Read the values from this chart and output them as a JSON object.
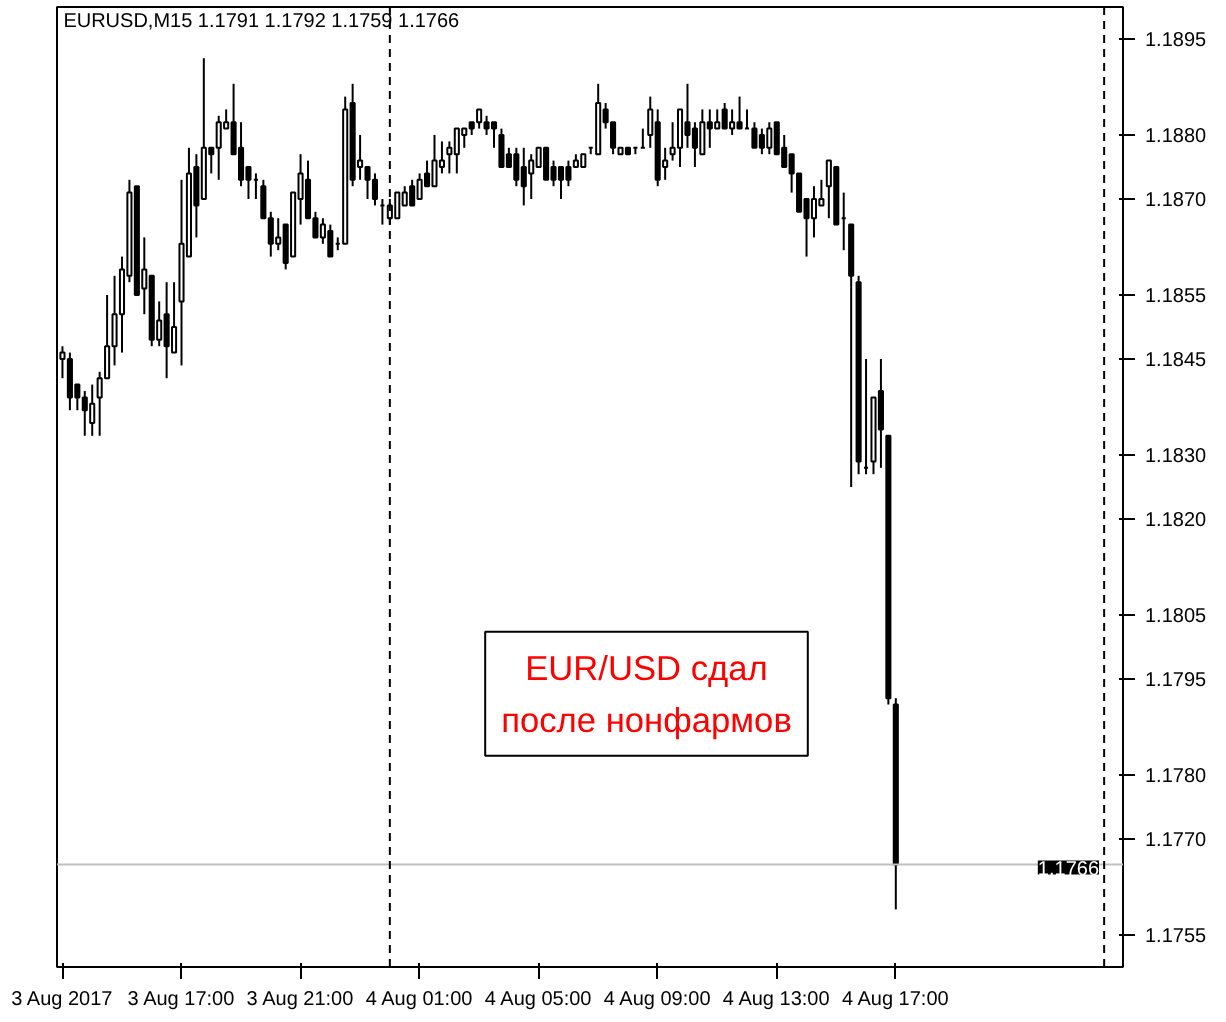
{
  "chart_data": {
    "type": "candlestick",
    "title": "EURUSD,M15  1.1791 1.1792 1.1759 1.1766",
    "annotations": [
      "EUR/USD сдал\nпосле нонфармов"
    ],
    "x": [
      "2017-08-03T13:00",
      "2017-08-03T13:15",
      "2017-08-03T13:30",
      "2017-08-03T13:45",
      "2017-08-03T14:00",
      "2017-08-03T14:15",
      "2017-08-03T14:30",
      "2017-08-03T14:45",
      "2017-08-03T15:00",
      "2017-08-03T15:15",
      "2017-08-03T15:30",
      "2017-08-03T15:45",
      "2017-08-03T16:00",
      "2017-08-03T16:15",
      "2017-08-03T16:30",
      "2017-08-03T16:45",
      "2017-08-03T17:00",
      "2017-08-03T17:15",
      "2017-08-03T17:30",
      "2017-08-03T17:45",
      "2017-08-03T18:00",
      "2017-08-03T18:15",
      "2017-08-03T18:30",
      "2017-08-03T18:45",
      "2017-08-03T19:00",
      "2017-08-03T19:15",
      "2017-08-03T19:30",
      "2017-08-03T19:45",
      "2017-08-03T20:00",
      "2017-08-03T20:15",
      "2017-08-03T20:30",
      "2017-08-03T20:45",
      "2017-08-03T21:00",
      "2017-08-03T21:15",
      "2017-08-03T21:30",
      "2017-08-03T21:45",
      "2017-08-03T22:00",
      "2017-08-03T22:15",
      "2017-08-03T22:30",
      "2017-08-03T22:45",
      "2017-08-03T23:00",
      "2017-08-03T23:15",
      "2017-08-03T23:30",
      "2017-08-03T23:45",
      "2017-08-04T00:00",
      "2017-08-04T00:15",
      "2017-08-04T00:30",
      "2017-08-04T00:45",
      "2017-08-04T01:00",
      "2017-08-04T01:15",
      "2017-08-04T01:30",
      "2017-08-04T01:45",
      "2017-08-04T02:00",
      "2017-08-04T02:15",
      "2017-08-04T02:30",
      "2017-08-04T02:45",
      "2017-08-04T03:00",
      "2017-08-04T03:15",
      "2017-08-04T03:30",
      "2017-08-04T03:45",
      "2017-08-04T04:00",
      "2017-08-04T04:15",
      "2017-08-04T04:30",
      "2017-08-04T04:45",
      "2017-08-04T05:00",
      "2017-08-04T05:15",
      "2017-08-04T05:30",
      "2017-08-04T05:45",
      "2017-08-04T06:00",
      "2017-08-04T06:15",
      "2017-08-04T06:30",
      "2017-08-04T06:45",
      "2017-08-04T07:00",
      "2017-08-04T07:15",
      "2017-08-04T07:30",
      "2017-08-04T07:45",
      "2017-08-04T08:00",
      "2017-08-04T08:15",
      "2017-08-04T08:30",
      "2017-08-04T08:45",
      "2017-08-04T09:00",
      "2017-08-04T09:15",
      "2017-08-04T09:30",
      "2017-08-04T09:45",
      "2017-08-04T10:00",
      "2017-08-04T10:15",
      "2017-08-04T10:30",
      "2017-08-04T10:45",
      "2017-08-04T11:00",
      "2017-08-04T11:15",
      "2017-08-04T11:30",
      "2017-08-04T11:45",
      "2017-08-04T12:00",
      "2017-08-04T12:15",
      "2017-08-04T12:30",
      "2017-08-04T12:45",
      "2017-08-04T13:00",
      "2017-08-04T13:15",
      "2017-08-04T13:30",
      "2017-08-04T13:45",
      "2017-08-04T14:00",
      "2017-08-04T14:15",
      "2017-08-04T14:30",
      "2017-08-04T14:45",
      "2017-08-04T15:00",
      "2017-08-04T15:15",
      "2017-08-04T15:30",
      "2017-08-04T15:45",
      "2017-08-04T16:00",
      "2017-08-04T16:15",
      "2017-08-04T16:30",
      "2017-08-04T16:45",
      "2017-08-04T17:00"
    ],
    "ohlc": [
      [
        1.1845,
        1.1847,
        1.1842,
        1.1846
      ],
      [
        1.1845,
        1.1846,
        1.1837,
        1.1839
      ],
      [
        1.1841,
        1.1841,
        1.1837,
        1.1839
      ],
      [
        1.1839,
        1.184,
        1.1833,
        1.1837
      ],
      [
        1.1835,
        1.1841,
        1.1833,
        1.1838
      ],
      [
        1.1839,
        1.1843,
        1.1833,
        1.1842
      ],
      [
        1.1842,
        1.1855,
        1.1842,
        1.1847
      ],
      [
        1.1847,
        1.1858,
        1.1844,
        1.1852
      ],
      [
        1.1852,
        1.1861,
        1.1846,
        1.1859
      ],
      [
        1.1858,
        1.1873,
        1.1857,
        1.1871
      ],
      [
        1.1872,
        1.1872,
        1.1855,
        1.1855
      ],
      [
        1.1856,
        1.1864,
        1.1852,
        1.1859
      ],
      [
        1.1858,
        1.1858,
        1.1847,
        1.1848
      ],
      [
        1.1848,
        1.1854,
        1.1847,
        1.1851
      ],
      [
        1.1852,
        1.1857,
        1.1842,
        1.1847
      ],
      [
        1.1846,
        1.1857,
        1.1846,
        1.185
      ],
      [
        1.1854,
        1.1873,
        1.1844,
        1.1863
      ],
      [
        1.1861,
        1.1878,
        1.1861,
        1.1874
      ],
      [
        1.1875,
        1.1877,
        1.1864,
        1.1869
      ],
      [
        1.187,
        1.1892,
        1.187,
        1.1878
      ],
      [
        1.1878,
        1.1878,
        1.1874,
        1.1877
      ],
      [
        1.1878,
        1.1883,
        1.1873,
        1.1882
      ],
      [
        1.1881,
        1.1884,
        1.1881,
        1.1882
      ],
      [
        1.1882,
        1.1888,
        1.1877,
        1.1877
      ],
      [
        1.1878,
        1.1882,
        1.1872,
        1.1873
      ],
      [
        1.1875,
        1.1875,
        1.187,
        1.1873
      ],
      [
        1.1873,
        1.1874,
        1.187,
        1.1873
      ],
      [
        1.1872,
        1.1873,
        1.1867,
        1.1867
      ],
      [
        1.1867,
        1.1868,
        1.1861,
        1.1863
      ],
      [
        1.1863,
        1.1867,
        1.1862,
        1.1864
      ],
      [
        1.1866,
        1.1866,
        1.1859,
        1.186
      ],
      [
        1.1861,
        1.1871,
        1.1861,
        1.1871
      ],
      [
        1.187,
        1.1877,
        1.1866,
        1.1874
      ],
      [
        1.1873,
        1.1876,
        1.1867,
        1.1867
      ],
      [
        1.1867,
        1.1868,
        1.1864,
        1.1864
      ],
      [
        1.1864,
        1.1867,
        1.1863,
        1.1866
      ],
      [
        1.1865,
        1.1866,
        1.1861,
        1.1861
      ],
      [
        1.1863,
        1.1864,
        1.1862,
        1.1863
      ],
      [
        1.1863,
        1.1886,
        1.1863,
        1.1884
      ],
      [
        1.1885,
        1.1888,
        1.1872,
        1.1873
      ],
      [
        1.1875,
        1.188,
        1.1873,
        1.1876
      ],
      [
        1.1875,
        1.1875,
        1.187,
        1.1873
      ],
      [
        1.1873,
        1.1874,
        1.1869,
        1.187
      ],
      [
        1.1869,
        1.187,
        1.1866,
        1.1869
      ],
      [
        1.1867,
        1.187,
        1.1866,
        1.1869
      ],
      [
        1.1867,
        1.1871,
        1.1867,
        1.1871
      ],
      [
        1.1869,
        1.1872,
        1.1869,
        1.1871
      ],
      [
        1.1872,
        1.1873,
        1.1869,
        1.1869
      ],
      [
        1.187,
        1.1874,
        1.187,
        1.1873
      ],
      [
        1.1874,
        1.1876,
        1.1872,
        1.1872
      ],
      [
        1.1872,
        1.188,
        1.1872,
        1.1876
      ],
      [
        1.1875,
        1.1879,
        1.1874,
        1.1876
      ],
      [
        1.1877,
        1.1879,
        1.1874,
        1.1878
      ],
      [
        1.1877,
        1.1881,
        1.1874,
        1.1881
      ],
      [
        1.188,
        1.1881,
        1.1878,
        1.1881
      ],
      [
        1.1882,
        1.1882,
        1.188,
        1.1881
      ],
      [
        1.1882,
        1.1884,
        1.1881,
        1.1884
      ],
      [
        1.1882,
        1.1883,
        1.188,
        1.1881
      ],
      [
        1.1882,
        1.1882,
        1.1878,
        1.1881
      ],
      [
        1.188,
        1.1881,
        1.1875,
        1.1875
      ],
      [
        1.1877,
        1.1878,
        1.1875,
        1.1875
      ],
      [
        1.1877,
        1.1878,
        1.1872,
        1.1873
      ],
      [
        1.1875,
        1.1878,
        1.1869,
        1.1872
      ],
      [
        1.1874,
        1.1877,
        1.187,
        1.1876
      ],
      [
        1.1875,
        1.1878,
        1.1875,
        1.1878
      ],
      [
        1.1878,
        1.1878,
        1.1873,
        1.1873
      ],
      [
        1.1875,
        1.1876,
        1.1872,
        1.1873
      ],
      [
        1.1875,
        1.1875,
        1.187,
        1.1873
      ],
      [
        1.1875,
        1.1876,
        1.1872,
        1.1873
      ],
      [
        1.1875,
        1.1877,
        1.1875,
        1.1876
      ],
      [
        1.1875,
        1.1877,
        1.1875,
        1.1877
      ],
      [
        1.1878,
        1.1878,
        1.1877,
        1.1878
      ],
      [
        1.1877,
        1.1888,
        1.1877,
        1.1885
      ],
      [
        1.1884,
        1.1885,
        1.1881,
        1.1882
      ],
      [
        1.1882,
        1.1882,
        1.1877,
        1.1878
      ],
      [
        1.1877,
        1.1878,
        1.1877,
        1.1878
      ],
      [
        1.1878,
        1.1878,
        1.1877,
        1.1877
      ],
      [
        1.1878,
        1.1878,
        1.1877,
        1.1878
      ],
      [
        1.1878,
        1.1881,
        1.1878,
        1.1878
      ],
      [
        1.188,
        1.1886,
        1.1878,
        1.1884
      ],
      [
        1.1882,
        1.1884,
        1.1872,
        1.1873
      ],
      [
        1.1875,
        1.1878,
        1.1873,
        1.1876
      ],
      [
        1.1877,
        1.1882,
        1.1876,
        1.1878
      ],
      [
        1.1878,
        1.1884,
        1.1875,
        1.1884
      ],
      [
        1.1882,
        1.1888,
        1.1878,
        1.188
      ],
      [
        1.1881,
        1.1882,
        1.1875,
        1.1878
      ],
      [
        1.1877,
        1.1884,
        1.1877,
        1.1882
      ],
      [
        1.1882,
        1.1884,
        1.1878,
        1.1881
      ],
      [
        1.1881,
        1.1884,
        1.1881,
        1.1882
      ],
      [
        1.1884,
        1.1885,
        1.1881,
        1.1881
      ],
      [
        1.1881,
        1.1884,
        1.188,
        1.1882
      ],
      [
        1.1882,
        1.1886,
        1.1881,
        1.1881
      ],
      [
        1.1881,
        1.1884,
        1.1881,
        1.1881
      ],
      [
        1.1881,
        1.1882,
        1.1878,
        1.1878
      ],
      [
        1.188,
        1.1881,
        1.1877,
        1.1878
      ],
      [
        1.1878,
        1.1882,
        1.1877,
        1.1881
      ],
      [
        1.1882,
        1.1882,
        1.1877,
        1.1877
      ],
      [
        1.1878,
        1.188,
        1.1875,
        1.1875
      ],
      [
        1.1877,
        1.1877,
        1.1871,
        1.1874
      ],
      [
        1.1874,
        1.1874,
        1.1868,
        1.1868
      ],
      [
        1.187,
        1.187,
        1.1861,
        1.1867
      ],
      [
        1.1867,
        1.1872,
        1.1864,
        1.187
      ],
      [
        1.1869,
        1.1873,
        1.1869,
        1.187
      ],
      [
        1.1872,
        1.1876,
        1.1867,
        1.1876
      ],
      [
        1.1875,
        1.1875,
        1.1866,
        1.1866
      ],
      [
        1.1867,
        1.1871,
        1.1862,
        1.1867
      ],
      [
        1.1866,
        1.1866,
        1.1825,
        1.1858
      ],
      [
        1.1857,
        1.1858,
        1.1827,
        1.1829
      ],
      [
        1.1828,
        1.1845,
        1.1827,
        1.1828
      ],
      [
        1.1829,
        1.1839,
        1.1827,
        1.1839
      ],
      [
        1.184,
        1.1845,
        1.1828,
        1.1834
      ],
      [
        1.1833,
        1.1833,
        1.1791,
        1.1792
      ],
      [
        1.1791,
        1.1792,
        1.1759,
        1.1766
      ]
    ],
    "color": "#000000",
    "xlim": [
      "2017-08-03T12:49",
      "2017-08-05T00:38"
    ],
    "xticks": [
      {
        "value": "2017-08-03T13:00",
        "label": "3 Aug 2017"
      },
      {
        "value": "2017-08-03T17:00",
        "label": "3 Aug 17:00"
      },
      {
        "value": "2017-08-03T21:00",
        "label": "3 Aug 21:00"
      },
      {
        "value": "2017-08-04T01:00",
        "label": "4 Aug 01:00"
      },
      {
        "value": "2017-08-04T05:00",
        "label": "4 Aug 05:00"
      },
      {
        "value": "2017-08-04T09:00",
        "label": "4 Aug 09:00"
      },
      {
        "value": "2017-08-04T13:00",
        "label": "4 Aug 13:00"
      },
      {
        "value": "2017-08-04T17:00",
        "label": "4 Aug 17:00"
      }
    ],
    "ylim": [
      1.175,
      1.19
    ],
    "yticks": [
      {
        "value": 1.1895,
        "label": "1.1895"
      },
      {
        "value": 1.188,
        "label": "1.1880"
      },
      {
        "value": 1.187,
        "label": "1.1870"
      },
      {
        "value": 1.1855,
        "label": "1.1855"
      },
      {
        "value": 1.1845,
        "label": "1.1845"
      },
      {
        "value": 1.183,
        "label": "1.1830"
      },
      {
        "value": 1.182,
        "label": "1.1820"
      },
      {
        "value": 1.1805,
        "label": "1.1805"
      },
      {
        "value": 1.1795,
        "label": "1.1795"
      },
      {
        "value": 1.178,
        "label": "1.1780"
      },
      {
        "value": 1.177,
        "label": "1.1770"
      },
      {
        "value": 1.1755,
        "label": "1.1755"
      }
    ],
    "ref_lines": [
      {
        "axis": "y",
        "value": 1.1766,
        "label": "1.1766",
        "color": "#c0c0c0",
        "line_style": "solid"
      },
      {
        "axis": "x",
        "value": "2017-08-04T00:00",
        "label": null,
        "color": "#000000",
        "line_style": "dashed"
      },
      {
        "axis": "x",
        "value": "2017-08-05T00:00",
        "label": null,
        "color": "#000000",
        "line_style": "dashed"
      }
    ],
    "grid": false
  }
}
